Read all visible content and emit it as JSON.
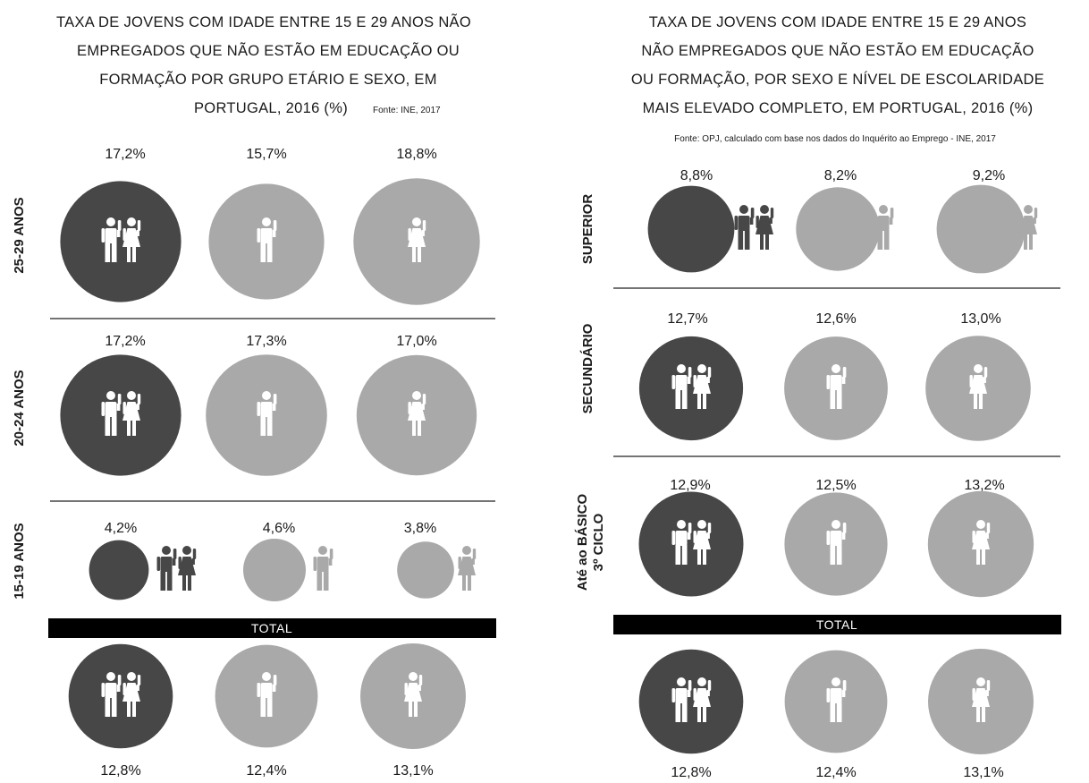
{
  "colors": {
    "dark": "#474747",
    "light": "#a9a9a9",
    "figure": "#ffffff",
    "bar": "#000000",
    "rule": "#222222"
  },
  "chart_data": [
    {
      "type": "bubble-pictogram",
      "title_lines": [
        "TAXA DE JOVENS COM IDADE ENTRE 15 E 29 ANOS NÃO",
        "EMPREGADOS QUE NÃO ESTÃO EM EDUCAÇÃO OU",
        "FORMAÇÃO POR GRUPO ETÁRIO E SEXO, EM",
        "PORTUGAL, 2016 (%)"
      ],
      "source": "Fonte: INE, 2017",
      "total_label": "TOTAL",
      "rows": [
        {
          "label": "25-29 ANOS",
          "values": [
            "17,2%",
            "15,7%",
            "18,8%"
          ],
          "numbers": [
            17.2,
            15.7,
            18.8
          ]
        },
        {
          "label": "20-24 ANOS",
          "values": [
            "17,2%",
            "17,3%",
            "17,0%"
          ],
          "numbers": [
            17.2,
            17.3,
            17.0
          ]
        },
        {
          "label": "15-19 ANOS",
          "values": [
            "4,2%",
            "4,6%",
            "3,8%"
          ],
          "numbers": [
            4.2,
            4.6,
            3.8
          ]
        }
      ],
      "total": {
        "values": [
          "12,8%",
          "12,4%",
          "13,1%"
        ],
        "numbers": [
          12.8,
          12.4,
          13.1
        ]
      }
    },
    {
      "type": "bubble-pictogram",
      "title_lines": [
        "TAXA DE JOVENS COM IDADE ENTRE 15 E 29 ANOS",
        "NÃO EMPREGADOS QUE NÃO ESTÃO EM EDUCAÇÃO",
        "OU FORMAÇÃO, POR SEXO E NÍVEL DE ESCOLARIDADE",
        "MAIS ELEVADO COMPLETO, EM PORTUGAL, 2016 (%)"
      ],
      "source": "Fonte: OPJ, calculado com base nos dados do Inquérito ao Emprego - INE, 2017",
      "total_label": "TOTAL",
      "rows": [
        {
          "label": "SUPERIOR",
          "values": [
            "8,8%",
            "8,2%",
            "9,2%"
          ],
          "numbers": [
            8.8,
            8.2,
            9.2
          ]
        },
        {
          "label": "SECUNDÁRIO",
          "values": [
            "12,7%",
            "12,6%",
            "13,0%"
          ],
          "numbers": [
            12.7,
            12.6,
            13.0
          ]
        },
        {
          "label": "Até ao BÁSICO",
          "label2": "3º CICLO",
          "values": [
            "12,9%",
            "12,5%",
            "13,2%"
          ],
          "numbers": [
            12.9,
            12.5,
            13.2
          ]
        }
      ],
      "total": {
        "values": [
          "12,8%",
          "12,4%",
          "13,1%"
        ],
        "numbers": [
          12.8,
          12.4,
          13.1
        ]
      }
    }
  ]
}
